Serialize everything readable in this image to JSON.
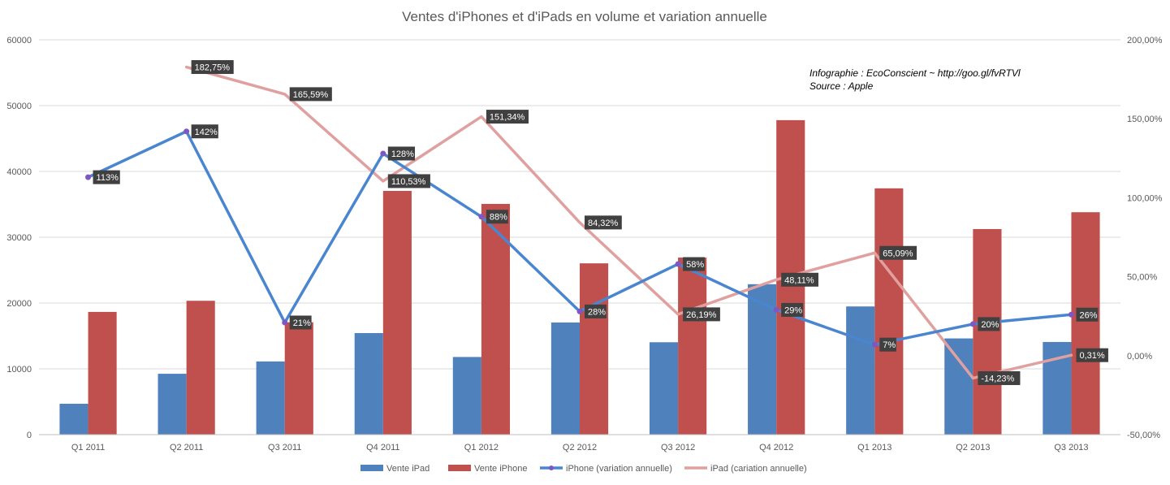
{
  "chart_data": {
    "type": "bar",
    "title": "Ventes d'iPhones et d'iPads en volume et variation annuelle",
    "annotations": [
      "Infographie : EcoConscient ~ http://goo.gl/fvRTVl",
      "Source : Apple"
    ],
    "categories": [
      "Q1 2011",
      "Q2 2011",
      "Q3 2011",
      "Q4 2011",
      "Q1 2012",
      "Q2 2012",
      "Q3 2012",
      "Q4 2012",
      "Q1 2013",
      "Q2 2013",
      "Q3 2013"
    ],
    "y_left": {
      "min": 0,
      "max": 60000,
      "step": 10000,
      "ticks": [
        "0",
        "10000",
        "20000",
        "30000",
        "40000",
        "50000",
        "60000"
      ]
    },
    "y_right": {
      "min": -50,
      "max": 200,
      "step": 50,
      "ticks": [
        "-50,00%",
        "0,00%",
        "50,00%",
        "100,00%",
        "150,00%",
        "200,00%"
      ]
    },
    "grid": true,
    "legend_position": "bottom",
    "series": [
      {
        "name": "Vente iPad",
        "kind": "bar",
        "axis": "left",
        "color": "#4F81BD",
        "values": [
          4690,
          9250,
          11120,
          15430,
          11800,
          17040,
          14040,
          22860,
          19480,
          14620,
          14080
        ]
      },
      {
        "name": "Vente iPhone",
        "kind": "bar",
        "axis": "left",
        "color": "#C0504D",
        "values": [
          18650,
          20340,
          17070,
          37040,
          35060,
          26030,
          26910,
          47790,
          37430,
          31240,
          33800
        ]
      },
      {
        "name": "iPhone (variation annuelle)",
        "kind": "line",
        "axis": "right",
        "color": "#4A86D0",
        "marker_color": "#7E57C2",
        "values": [
          113,
          142,
          21,
          128,
          88,
          28,
          58,
          29,
          7,
          20,
          26
        ],
        "labels": [
          "113%",
          "142%",
          "21%",
          "128%",
          "88%",
          "28%",
          "58%",
          "29%",
          "7%",
          "20%",
          "26%"
        ]
      },
      {
        "name": "iPad (cariation annuelle)",
        "kind": "line",
        "axis": "right",
        "color": "#E0A0A0",
        "values": [
          null,
          182.75,
          165.59,
          110.53,
          151.34,
          84.32,
          26.19,
          48.11,
          65.09,
          -14.23,
          0.31
        ],
        "labels": [
          null,
          "182,75%",
          "165,59%",
          "110,53%",
          "151,34%",
          "84,32%",
          "26,19%",
          "48,11%",
          "65,09%",
          "-14,23%",
          "0,31%"
        ]
      }
    ]
  }
}
